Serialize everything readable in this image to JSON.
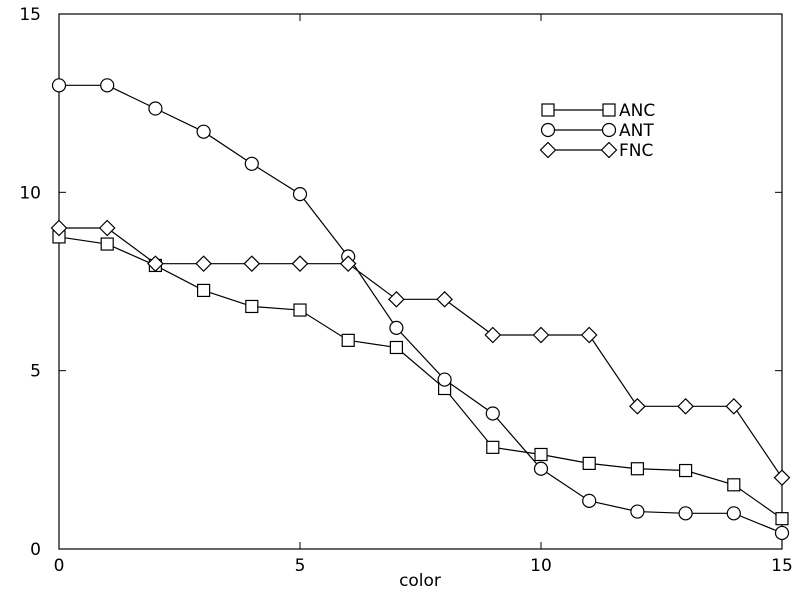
{
  "chart_data": {
    "type": "line",
    "title": "",
    "xlabel": "color",
    "ylabel": "",
    "xlim": [
      0,
      15
    ],
    "ylim": [
      0,
      15
    ],
    "xticks": [
      0,
      5,
      10,
      15
    ],
    "yticks": [
      0,
      5,
      10,
      15
    ],
    "tick_labels_x": [
      "0",
      "5",
      "10",
      "15"
    ],
    "tick_labels_y": [
      "0",
      "5",
      "10",
      "15"
    ],
    "grid": false,
    "legend_position": "top-right",
    "line_color": "#000000",
    "x": [
      0,
      1,
      2,
      3,
      4,
      5,
      6,
      7,
      8,
      9,
      10,
      11,
      12,
      13,
      14,
      15
    ],
    "series": [
      {
        "name": "ANC",
        "marker": "square",
        "values": [
          8.75,
          8.55,
          7.95,
          7.25,
          6.8,
          6.7,
          5.85,
          5.65,
          4.5,
          2.85,
          2.65,
          2.4,
          2.25,
          2.2,
          1.8,
          0.85
        ]
      },
      {
        "name": "ANT",
        "marker": "circle",
        "values": [
          13.0,
          13.0,
          12.35,
          11.7,
          10.8,
          9.95,
          8.2,
          6.2,
          4.75,
          3.8,
          2.25,
          1.35,
          1.05,
          1.0,
          1.0,
          0.45
        ]
      },
      {
        "name": "FNC",
        "marker": "diamond",
        "values": [
          9.0,
          9.0,
          8.0,
          8.0,
          8.0,
          8.0,
          8.0,
          7.0,
          7.0,
          6.0,
          6.0,
          6.0,
          4.0,
          4.0,
          4.0,
          2.0
        ]
      }
    ]
  }
}
